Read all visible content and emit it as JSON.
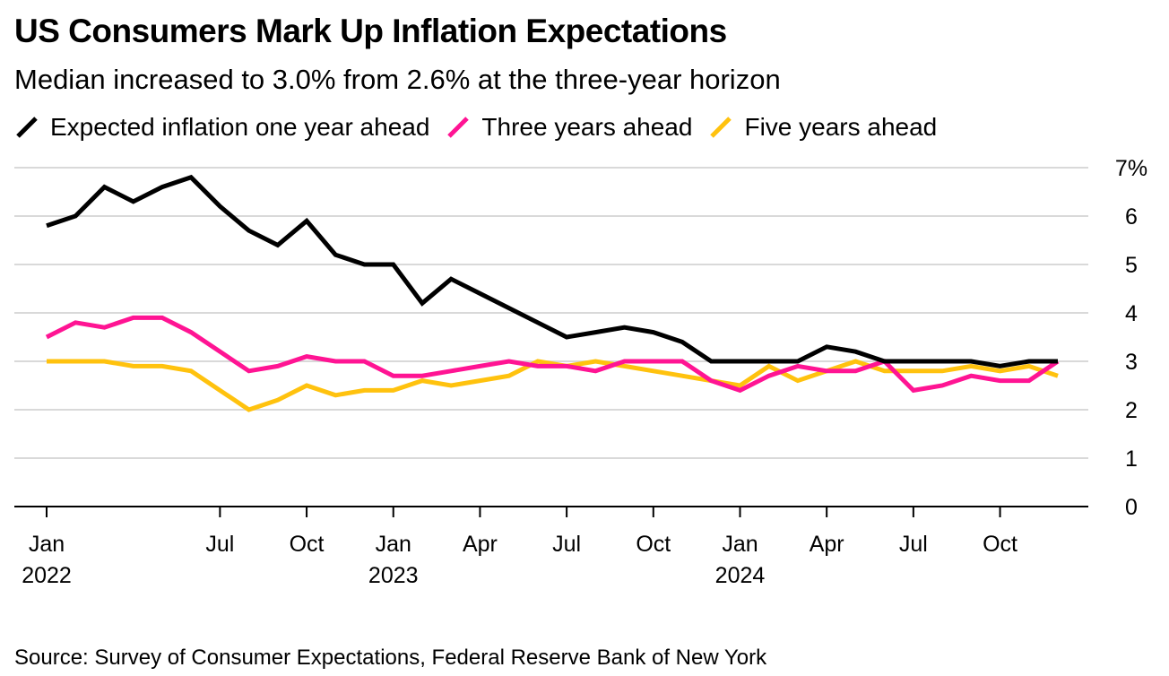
{
  "title": "US Consumers Mark Up Inflation Expectations",
  "subtitle": "Median increased to 3.0% from 2.6% at the three-year horizon",
  "source": "Source: Survey of Consumer Expectations, Federal Reserve Bank of New York",
  "chart_data": {
    "type": "line",
    "title": "US Consumers Mark Up Inflation Expectations",
    "subtitle": "Median increased to 3.0% from 2.6% at the three-year horizon",
    "xlabel": "",
    "ylabel": "",
    "ylim": [
      0,
      7
    ],
    "y_ticks": [
      {
        "value": 0,
        "label": "0"
      },
      {
        "value": 1,
        "label": "1"
      },
      {
        "value": 2,
        "label": "2"
      },
      {
        "value": 3,
        "label": "3"
      },
      {
        "value": 4,
        "label": "4"
      },
      {
        "value": 5,
        "label": "5"
      },
      {
        "value": 6,
        "label": "6"
      },
      {
        "value": 7,
        "label": "7%"
      }
    ],
    "x_ticks": [
      {
        "index": 0,
        "label": "Jan",
        "year": "2022"
      },
      {
        "index": 6,
        "label": "Jul",
        "year": ""
      },
      {
        "index": 9,
        "label": "Oct",
        "year": ""
      },
      {
        "index": 12,
        "label": "Jan",
        "year": "2023"
      },
      {
        "index": 15,
        "label": "Apr",
        "year": ""
      },
      {
        "index": 18,
        "label": "Jul",
        "year": ""
      },
      {
        "index": 21,
        "label": "Oct",
        "year": ""
      },
      {
        "index": 24,
        "label": "Jan",
        "year": "2024"
      },
      {
        "index": 27,
        "label": "Apr",
        "year": ""
      },
      {
        "index": 30,
        "label": "Jul",
        "year": ""
      },
      {
        "index": 33,
        "label": "Oct",
        "year": ""
      }
    ],
    "x": [
      "Jan 2022",
      "Feb 2022",
      "Mar 2022",
      "Apr 2022",
      "May 2022",
      "Jun 2022",
      "Jul 2022",
      "Aug 2022",
      "Sep 2022",
      "Oct 2022",
      "Nov 2022",
      "Dec 2022",
      "Jan 2023",
      "Feb 2023",
      "Mar 2023",
      "Apr 2023",
      "May 2023",
      "Jun 2023",
      "Jul 2023",
      "Aug 2023",
      "Sep 2023",
      "Oct 2023",
      "Nov 2023",
      "Dec 2023",
      "Jan 2024",
      "Feb 2024",
      "Mar 2024",
      "Apr 2024",
      "May 2024",
      "Jun 2024",
      "Jul 2024",
      "Aug 2024",
      "Sep 2024",
      "Oct 2024",
      "Nov 2024",
      "Dec 2024"
    ],
    "series": [
      {
        "name": "Expected inflation one year ahead",
        "color": "#000000",
        "values": [
          5.8,
          6.0,
          6.6,
          6.3,
          6.6,
          6.8,
          6.2,
          5.7,
          5.4,
          5.9,
          5.2,
          5.0,
          5.0,
          4.2,
          4.7,
          4.4,
          4.1,
          3.8,
          3.5,
          3.6,
          3.7,
          3.6,
          3.4,
          3.0,
          3.0,
          3.0,
          3.0,
          3.3,
          3.2,
          3.0,
          3.0,
          3.0,
          3.0,
          2.9,
          3.0,
          3.0
        ]
      },
      {
        "name": "Three years ahead",
        "color": "#ff1493",
        "values": [
          3.5,
          3.8,
          3.7,
          3.9,
          3.9,
          3.6,
          3.2,
          2.8,
          2.9,
          3.1,
          3.0,
          3.0,
          2.7,
          2.7,
          2.8,
          2.9,
          3.0,
          2.9,
          2.9,
          2.8,
          3.0,
          3.0,
          3.0,
          2.6,
          2.4,
          2.7,
          2.9,
          2.8,
          2.8,
          3.0,
          2.4,
          2.5,
          2.7,
          2.6,
          2.6,
          3.0
        ]
      },
      {
        "name": "Five years ahead",
        "color": "#ffc20e",
        "values": [
          3.0,
          3.0,
          3.0,
          2.9,
          2.9,
          2.8,
          2.4,
          2.0,
          2.2,
          2.5,
          2.3,
          2.4,
          2.4,
          2.6,
          2.5,
          2.6,
          2.7,
          3.0,
          2.9,
          3.0,
          2.9,
          2.8,
          2.7,
          2.6,
          2.5,
          2.9,
          2.6,
          2.8,
          3.0,
          2.8,
          2.8,
          2.8,
          2.9,
          2.8,
          2.9,
          2.7
        ]
      }
    ],
    "legend": [
      "Expected inflation one year ahead",
      "Three years ahead",
      "Five years ahead"
    ],
    "legend_position": "top-left",
    "grid": true
  }
}
